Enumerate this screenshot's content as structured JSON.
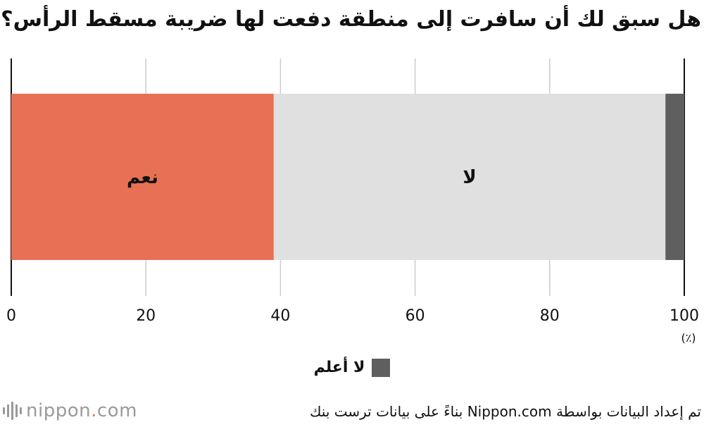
{
  "title": "هل سبق لك أن سافرت إلى منطقة دفعت لها ضريبة مسقط الرأس؟",
  "chart_data": {
    "type": "bar",
    "orientation": "horizontal",
    "stacked": true,
    "title": "هل سبق لك أن سافرت إلى منطقة دفعت لها ضريبة مسقط الرأس؟",
    "unit": "(٪)",
    "xlim": [
      0,
      100
    ],
    "ticks": [
      0,
      20,
      40,
      60,
      80,
      100
    ],
    "grid": true,
    "series": [
      {
        "name": "نعم",
        "value": 39,
        "color": "#e87054",
        "inside_label": "نعم"
      },
      {
        "name": "لا",
        "value": 58.2,
        "color": "#e0e0e0",
        "inside_label": "لا"
      },
      {
        "name": "لا أعلم",
        "value": 2.8,
        "color": "#5f5f5f",
        "inside_label": ""
      }
    ],
    "legend": {
      "placement": "bottom-center",
      "entries": [
        "لا أعلم"
      ]
    }
  },
  "legend_label": "لا أعلم",
  "source": "تم إعداد البيانات بواسطة Nippon.com بناءً على بيانات ترست بنك",
  "logo": {
    "name": "nippon",
    "dot": ".",
    "suffix": "com"
  }
}
